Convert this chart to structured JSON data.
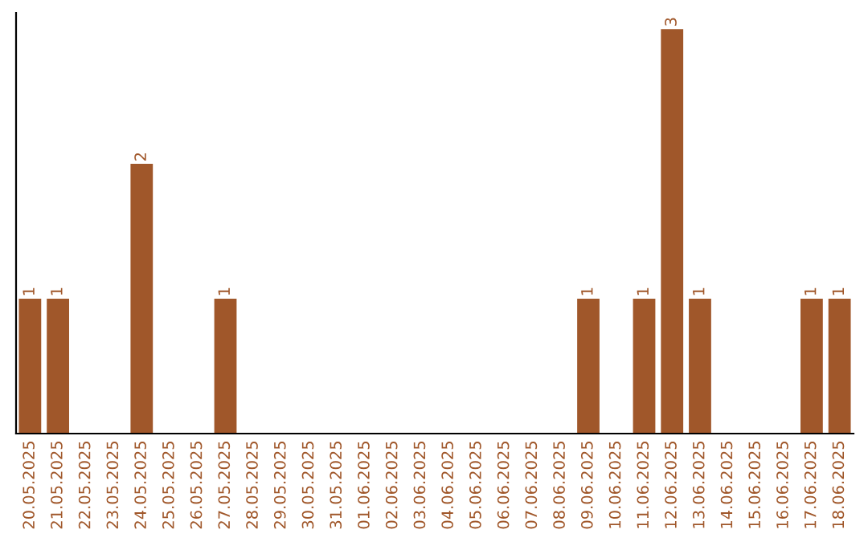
{
  "chart_data": {
    "type": "bar",
    "categories": [
      "20.05.2025",
      "21.05.2025",
      "22.05.2025",
      "23.05.2025",
      "24.05.2025",
      "25.05.2025",
      "26.05.2025",
      "27.05.2025",
      "28.05.2025",
      "29.05.2025",
      "30.05.2025",
      "31.05.2025",
      "01.06.2025",
      "02.06.2025",
      "03.06.2025",
      "04.06.2025",
      "05.06.2025",
      "06.06.2025",
      "07.06.2025",
      "08.06.2025",
      "09.06.2025",
      "10.06.2025",
      "11.06.2025",
      "12.06.2025",
      "13.06.2025",
      "14.06.2025",
      "15.06.2025",
      "16.06.2025",
      "17.06.2025",
      "18.06.2025"
    ],
    "values": [
      1,
      1,
      0,
      0,
      2,
      0,
      0,
      1,
      0,
      0,
      0,
      0,
      0,
      0,
      0,
      0,
      0,
      0,
      0,
      0,
      1,
      0,
      1,
      3,
      1,
      0,
      0,
      0,
      1,
      1
    ],
    "value_labels": [
      "1",
      "1",
      null,
      null,
      "2",
      null,
      null,
      "1",
      null,
      null,
      null,
      null,
      null,
      null,
      null,
      null,
      null,
      null,
      null,
      null,
      "1",
      null,
      "1",
      "3",
      "1",
      null,
      null,
      null,
      "1",
      "1"
    ],
    "color": "#a0572a",
    "tick_labels": "x",
    "grid": false,
    "legend": false
  }
}
